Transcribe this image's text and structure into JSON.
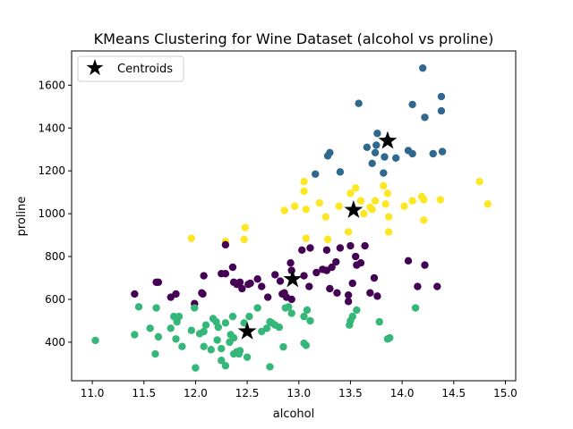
{
  "chart_data": {
    "type": "scatter",
    "title": "KMeans Clustering for Wine Dataset (alcohol vs proline)",
    "xlabel": "alcohol",
    "ylabel": "proline",
    "xlim": [
      10.8,
      15.1
    ],
    "ylim": [
      220,
      1760
    ],
    "xticks": [
      11.0,
      11.5,
      12.0,
      12.5,
      13.0,
      13.5,
      14.0,
      14.5,
      15.0
    ],
    "yticks": [
      400,
      600,
      800,
      1000,
      1200,
      1400,
      1600
    ],
    "grid": false,
    "legend": {
      "placement": "top-left",
      "entries": [
        "Centroids"
      ]
    },
    "colors": {
      "cluster_high": "#31688e",
      "cluster_mid": "#fde725",
      "cluster_midlow": "#440154",
      "cluster_low": "#35b779",
      "centroid": "#000000"
    },
    "series": [
      {
        "color_key": "cluster_high",
        "points": [
          [
            14.2,
            1680
          ],
          [
            14.1,
            1510
          ],
          [
            14.38,
            1547
          ],
          [
            14.38,
            1480
          ],
          [
            14.22,
            1450
          ],
          [
            13.58,
            1515
          ],
          [
            13.76,
            1375
          ],
          [
            13.86,
            1345
          ],
          [
            13.66,
            1310
          ],
          [
            13.74,
            1285
          ],
          [
            13.75,
            1320
          ],
          [
            13.83,
            1265
          ],
          [
            13.94,
            1260
          ],
          [
            14.06,
            1295
          ],
          [
            14.1,
            1280
          ],
          [
            14.3,
            1280
          ],
          [
            14.39,
            1290
          ],
          [
            13.3,
            1285
          ],
          [
            13.28,
            1270
          ],
          [
            13.16,
            1185
          ],
          [
            13.4,
            1195
          ],
          [
            13.82,
            1190
          ],
          [
            13.71,
            1235
          ]
        ]
      },
      {
        "color_key": "cluster_mid",
        "points": [
          [
            11.96,
            885
          ],
          [
            12.29,
            870
          ],
          [
            12.47,
            880
          ],
          [
            12.48,
            935
          ],
          [
            12.86,
            1015
          ],
          [
            12.96,
            1035
          ],
          [
            13.05,
            1105
          ],
          [
            13.05,
            1150
          ],
          [
            13.07,
            1020
          ],
          [
            13.07,
            885
          ],
          [
            13.2,
            1050
          ],
          [
            13.26,
            985
          ],
          [
            13.28,
            880
          ],
          [
            13.39,
            1035
          ],
          [
            13.48,
            915
          ],
          [
            13.5,
            1095
          ],
          [
            13.55,
            1120
          ],
          [
            13.6,
            1060
          ],
          [
            13.63,
            1000
          ],
          [
            13.69,
            1030
          ],
          [
            13.71,
            1020
          ],
          [
            13.74,
            1060
          ],
          [
            13.82,
            1130
          ],
          [
            13.84,
            1045
          ],
          [
            13.86,
            1095
          ],
          [
            13.87,
            985
          ],
          [
            13.87,
            915
          ],
          [
            14.02,
            1035
          ],
          [
            14.1,
            1060
          ],
          [
            14.19,
            1080
          ],
          [
            14.21,
            1065
          ],
          [
            14.21,
            970
          ],
          [
            14.37,
            1065
          ],
          [
            14.75,
            1150
          ],
          [
            14.83,
            1045
          ]
        ]
      },
      {
        "color_key": "cluster_midlow",
        "points": [
          [
            11.41,
            625
          ],
          [
            11.62,
            680
          ],
          [
            11.64,
            680
          ],
          [
            11.76,
            610
          ],
          [
            11.81,
            625
          ],
          [
            11.99,
            580
          ],
          [
            12.06,
            630
          ],
          [
            12.07,
            625
          ],
          [
            12.08,
            710
          ],
          [
            12.25,
            720
          ],
          [
            12.29,
            720
          ],
          [
            12.29,
            855
          ],
          [
            12.36,
            750
          ],
          [
            12.37,
            680
          ],
          [
            12.4,
            670
          ],
          [
            12.43,
            680
          ],
          [
            12.45,
            650
          ],
          [
            12.51,
            670
          ],
          [
            12.53,
            675
          ],
          [
            12.6,
            695
          ],
          [
            12.64,
            660
          ],
          [
            12.7,
            610
          ],
          [
            12.77,
            715
          ],
          [
            12.82,
            685
          ],
          [
            12.84,
            625
          ],
          [
            12.86,
            630
          ],
          [
            12.88,
            610
          ],
          [
            12.92,
            770
          ],
          [
            12.93,
            735
          ],
          [
            12.93,
            600
          ],
          [
            13.03,
            830
          ],
          [
            13.05,
            710
          ],
          [
            13.1,
            660
          ],
          [
            13.11,
            840
          ],
          [
            13.17,
            725
          ],
          [
            13.23,
            740
          ],
          [
            13.27,
            735
          ],
          [
            13.27,
            830
          ],
          [
            13.3,
            650
          ],
          [
            13.32,
            750
          ],
          [
            13.36,
            775
          ],
          [
            13.37,
            630
          ],
          [
            13.4,
            840
          ],
          [
            13.48,
            620
          ],
          [
            13.48,
            590
          ],
          [
            13.5,
            850
          ],
          [
            13.52,
            675
          ],
          [
            13.55,
            800
          ],
          [
            13.56,
            760
          ],
          [
            13.6,
            770
          ],
          [
            13.64,
            850
          ],
          [
            13.69,
            630
          ],
          [
            13.73,
            700
          ],
          [
            13.76,
            615
          ],
          [
            14.06,
            780
          ],
          [
            14.15,
            660
          ],
          [
            14.22,
            760
          ],
          [
            14.34,
            660
          ]
        ]
      },
      {
        "color_key": "cluster_low",
        "points": [
          [
            11.03,
            408
          ],
          [
            11.41,
            435
          ],
          [
            11.45,
            565
          ],
          [
            11.56,
            465
          ],
          [
            11.61,
            345
          ],
          [
            11.62,
            560
          ],
          [
            11.64,
            425
          ],
          [
            11.76,
            465
          ],
          [
            11.79,
            520
          ],
          [
            11.81,
            415
          ],
          [
            11.82,
            495
          ],
          [
            11.84,
            520
          ],
          [
            11.87,
            380
          ],
          [
            11.96,
            455
          ],
          [
            11.99,
            560
          ],
          [
            12.0,
            280
          ],
          [
            12.04,
            440
          ],
          [
            12.08,
            380
          ],
          [
            12.08,
            450
          ],
          [
            12.1,
            480
          ],
          [
            12.15,
            365
          ],
          [
            12.17,
            510
          ],
          [
            12.2,
            495
          ],
          [
            12.21,
            410
          ],
          [
            12.22,
            470
          ],
          [
            12.25,
            370
          ],
          [
            12.25,
            315
          ],
          [
            12.29,
            490
          ],
          [
            12.29,
            290
          ],
          [
            12.33,
            400
          ],
          [
            12.34,
            435
          ],
          [
            12.36,
            520
          ],
          [
            12.37,
            345
          ],
          [
            12.37,
            420
          ],
          [
            12.4,
            355
          ],
          [
            12.42,
            345
          ],
          [
            12.43,
            360
          ],
          [
            12.47,
            490
          ],
          [
            12.5,
            330
          ],
          [
            12.52,
            520
          ],
          [
            12.6,
            560
          ],
          [
            12.64,
            450
          ],
          [
            12.69,
            465
          ],
          [
            12.72,
            495
          ],
          [
            12.72,
            285
          ],
          [
            12.74,
            490
          ],
          [
            12.77,
            480
          ],
          [
            12.81,
            470
          ],
          [
            12.85,
            378
          ],
          [
            12.87,
            560
          ],
          [
            12.9,
            565
          ],
          [
            12.93,
            535
          ],
          [
            13.05,
            520
          ],
          [
            13.05,
            395
          ],
          [
            13.07,
            385
          ],
          [
            13.08,
            550
          ],
          [
            13.11,
            500
          ],
          [
            13.49,
            480
          ],
          [
            13.5,
            500
          ],
          [
            13.52,
            520
          ],
          [
            13.56,
            550
          ],
          [
            13.78,
            495
          ],
          [
            13.86,
            415
          ],
          [
            13.88,
            420
          ],
          [
            14.13,
            560
          ]
        ]
      }
    ],
    "centroids": [
      [
        13.86,
        1340
      ],
      [
        13.53,
        1017
      ],
      [
        12.94,
        694
      ],
      [
        12.5,
        450
      ]
    ]
  }
}
